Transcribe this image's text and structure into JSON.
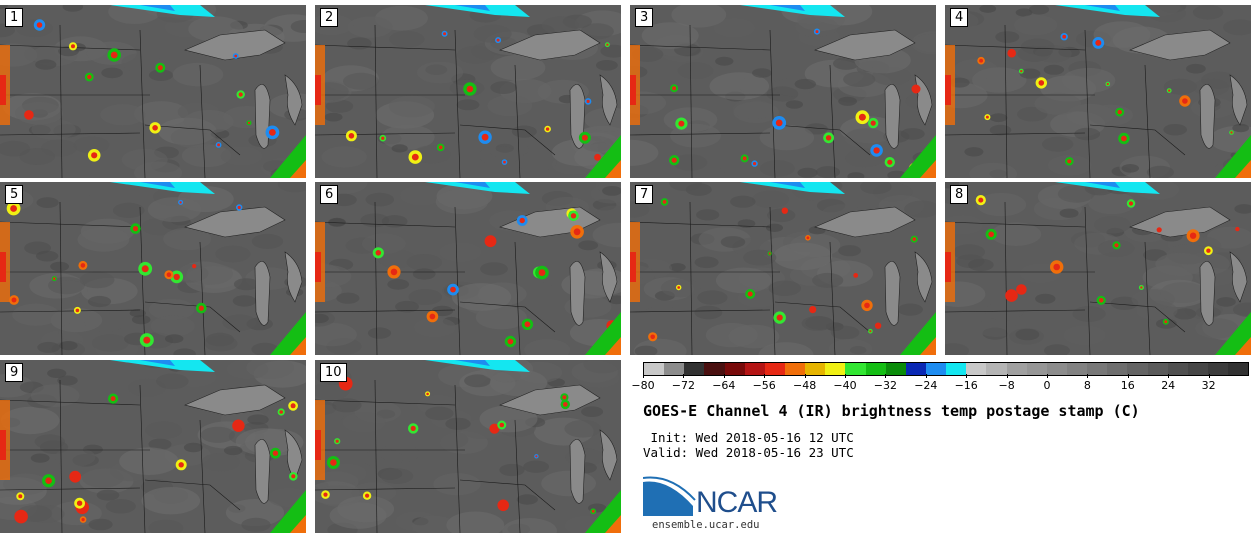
{
  "panels": [
    {
      "label": "1"
    },
    {
      "label": "2"
    },
    {
      "label": "3"
    },
    {
      "label": "4"
    },
    {
      "label": "5"
    },
    {
      "label": "6"
    },
    {
      "label": "7"
    },
    {
      "label": "8"
    },
    {
      "label": "9"
    },
    {
      "label": "10"
    }
  ],
  "colorbar": {
    "colors": [
      "#c8c8c8",
      "#8c8c8c",
      "#323232",
      "#4a1010",
      "#780a0a",
      "#b41414",
      "#e62814",
      "#f06e0a",
      "#e6b400",
      "#f0f014",
      "#32e632",
      "#14be14",
      "#0a8c0a",
      "#0a28b4",
      "#1e8cf0",
      "#14e6f0",
      "#c8c8c8",
      "#b4b4b4",
      "#a0a0a0",
      "#969696",
      "#8c8c8c",
      "#828282",
      "#787878",
      "#6e6e6e",
      "#646464",
      "#5a5a5a",
      "#505050",
      "#464646",
      "#3c3c3c",
      "#323232"
    ],
    "tick_labels": [
      "−80",
      "−72",
      "−64",
      "−56",
      "−48",
      "−40",
      "−32",
      "−24",
      "−16",
      "−8",
      "0",
      "8",
      "16",
      "24",
      "32"
    ]
  },
  "title": "GOES-E Channel 4 (IR) brightness temp postage stamp (C)",
  "init_text": " Init: Wed 2018-05-16 12 UTC",
  "valid_text": "Valid: Wed 2018-05-16 23 UTC",
  "logo": {
    "name": "NCAR",
    "url": "ensemble.ucar.edu"
  },
  "colors": {
    "logo_blue": "#1f4e8c"
  }
}
